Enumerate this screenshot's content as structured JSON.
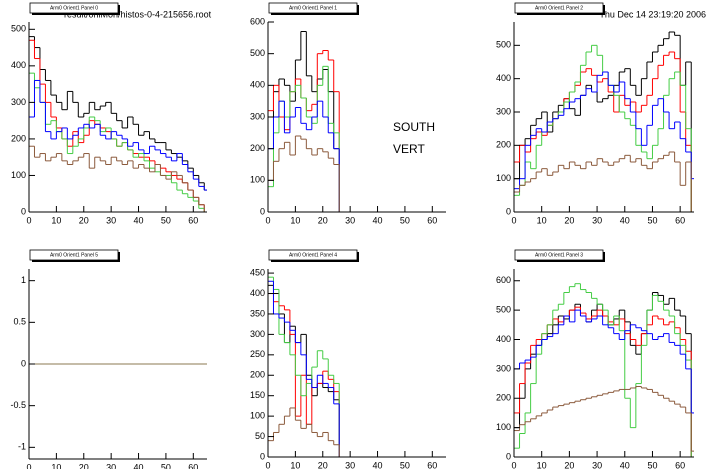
{
  "header": {
    "file": "result/onlMon/histos-0-4-215656.root",
    "date": "Thu Dec 14 23:19:20 2006",
    "labels": [
      "SOUTH",
      "VERT"
    ]
  },
  "chart_data": [
    {
      "type": "histogram",
      "title": "Arm0 Orient1 Panel 0",
      "xlim": [
        0,
        65
      ],
      "ylim": [
        0,
        520
      ],
      "xticks": [
        0,
        10,
        20,
        30,
        40,
        50,
        60
      ],
      "yticks": [
        0,
        100,
        200,
        300,
        400,
        500
      ],
      "bins": [
        0,
        2,
        4,
        6,
        8,
        10,
        12,
        14,
        16,
        18,
        20,
        22,
        24,
        26,
        28,
        30,
        32,
        34,
        36,
        38,
        40,
        42,
        44,
        46,
        48,
        50,
        52,
        54,
        56,
        58,
        60,
        62,
        64,
        65
      ],
      "series": [
        {
          "color": "#000000",
          "values": [
            480,
            450,
            390,
            360,
            320,
            300,
            280,
            330,
            300,
            260,
            270,
            300,
            280,
            290,
            300,
            270,
            250,
            230,
            260,
            240,
            210,
            220,
            200,
            190,
            190,
            170,
            160,
            150,
            140,
            120,
            100,
            80,
            60
          ]
        },
        {
          "color": "#ff0000",
          "values": [
            470,
            420,
            350,
            300,
            260,
            230,
            200,
            180,
            220,
            190,
            210,
            250,
            240,
            230,
            220,
            200,
            180,
            190,
            170,
            160,
            150,
            150,
            140,
            130,
            120,
            110,
            100,
            90,
            80,
            60,
            40,
            20,
            0
          ]
        },
        {
          "color": "#44cc44",
          "values": [
            380,
            340,
            300,
            240,
            250,
            220,
            200,
            160,
            180,
            200,
            230,
            260,
            250,
            220,
            230,
            200,
            180,
            190,
            170,
            150,
            160,
            140,
            120,
            110,
            100,
            100,
            80,
            60,
            50,
            40,
            30,
            10,
            0
          ]
        },
        {
          "color": "#0000ff",
          "values": [
            260,
            360,
            300,
            220,
            200,
            220,
            230,
            200,
            210,
            230,
            240,
            230,
            240,
            210,
            200,
            220,
            210,
            200,
            180,
            190,
            170,
            160,
            180,
            170,
            160,
            150,
            140,
            160,
            130,
            110,
            90,
            70,
            60
          ]
        },
        {
          "color": "#8b5a3c",
          "values": [
            180,
            150,
            160,
            140,
            150,
            160,
            140,
            130,
            140,
            150,
            160,
            120,
            150,
            140,
            130,
            150,
            140,
            130,
            140,
            120,
            130,
            120,
            110,
            130,
            100,
            90,
            110,
            100,
            80,
            60,
            40,
            20,
            0
          ]
        }
      ]
    },
    {
      "type": "histogram",
      "title": "Arm0 Orient1 Panel 1",
      "xlim": [
        0,
        65
      ],
      "ylim": [
        0,
        600
      ],
      "xticks": [
        0,
        10,
        20,
        30,
        40,
        50,
        60
      ],
      "yticks": [
        0,
        100,
        200,
        300,
        400,
        500,
        600
      ],
      "bins": [
        0,
        2,
        4,
        6,
        8,
        10,
        12,
        14,
        16,
        18,
        20,
        22,
        24,
        26,
        27
      ],
      "series": [
        {
          "color": "#000000",
          "values": [
            300,
            380,
            420,
            400,
            350,
            480,
            570,
            430,
            380,
            420,
            450,
            380,
            200,
            0
          ]
        },
        {
          "color": "#ff0000",
          "values": [
            320,
            400,
            300,
            260,
            380,
            420,
            360,
            320,
            340,
            500,
            510,
            480,
            380,
            0
          ]
        },
        {
          "color": "#44cc44",
          "values": [
            80,
            250,
            350,
            300,
            380,
            400,
            360,
            300,
            280,
            400,
            460,
            280,
            250,
            0
          ]
        },
        {
          "color": "#0000ff",
          "values": [
            200,
            300,
            350,
            250,
            300,
            330,
            280,
            260,
            300,
            350,
            300,
            250,
            200,
            0
          ]
        },
        {
          "color": "#8b5a3c",
          "values": [
            100,
            160,
            200,
            220,
            180,
            240,
            230,
            200,
            180,
            200,
            190,
            170,
            150,
            0
          ]
        }
      ]
    },
    {
      "type": "histogram",
      "title": "Arm0 Orient1 Panel 2",
      "xlim": [
        0,
        65
      ],
      "ylim": [
        0,
        570
      ],
      "xticks": [
        0,
        10,
        20,
        30,
        40,
        50,
        60
      ],
      "yticks": [
        0,
        100,
        200,
        300,
        400,
        500
      ],
      "bins": [
        0,
        2,
        4,
        6,
        8,
        10,
        12,
        14,
        16,
        18,
        20,
        22,
        24,
        26,
        28,
        30,
        32,
        34,
        36,
        38,
        40,
        42,
        44,
        46,
        48,
        50,
        52,
        54,
        56,
        58,
        60,
        62,
        64,
        65
      ],
      "series": [
        {
          "color": "#000000",
          "values": [
            100,
            200,
            220,
            260,
            280,
            300,
            240,
            300,
            320,
            340,
            310,
            290,
            350,
            380,
            360,
            330,
            340,
            350,
            380,
            420,
            430,
            380,
            350,
            400,
            450,
            480,
            500,
            520,
            540,
            530,
            380,
            450,
            0
          ]
        },
        {
          "color": "#ff0000",
          "values": [
            150,
            200,
            180,
            220,
            240,
            230,
            260,
            280,
            300,
            340,
            360,
            380,
            420,
            430,
            410,
            390,
            400,
            360,
            300,
            350,
            320,
            330,
            300,
            320,
            350,
            400,
            440,
            470,
            480,
            460,
            300,
            200,
            0
          ]
        },
        {
          "color": "#44cc44",
          "values": [
            50,
            80,
            150,
            130,
            200,
            240,
            260,
            280,
            300,
            330,
            360,
            390,
            440,
            480,
            500,
            470,
            420,
            380,
            350,
            300,
            280,
            260,
            200,
            180,
            160,
            200,
            250,
            350,
            400,
            420,
            380,
            250,
            0
          ]
        },
        {
          "color": "#0000ff",
          "values": [
            70,
            100,
            200,
            230,
            250,
            240,
            270,
            280,
            290,
            310,
            330,
            340,
            350,
            370,
            360,
            410,
            420,
            380,
            360,
            390,
            340,
            300,
            250,
            200,
            260,
            320,
            340,
            300,
            250,
            270,
            220,
            180,
            100
          ]
        },
        {
          "color": "#8b5a3c",
          "values": [
            60,
            80,
            90,
            100,
            120,
            130,
            110,
            120,
            140,
            130,
            150,
            140,
            130,
            150,
            140,
            160,
            150,
            140,
            150,
            160,
            170,
            150,
            160,
            140,
            130,
            150,
            160,
            170,
            180,
            150,
            80,
            150,
            0
          ]
        }
      ]
    },
    {
      "type": "histogram",
      "title": "Arm0 Orient1 Panel 5",
      "xlim": [
        0,
        65
      ],
      "ylim": [
        -1.14,
        1.14
      ],
      "xticks": [
        0,
        10,
        20,
        30,
        40,
        50,
        60
      ],
      "yticks": [
        -1,
        -0.5,
        0,
        0.5,
        1
      ],
      "bins": [
        0,
        65
      ],
      "series": [
        {
          "color": "#8b7a50",
          "values": [
            0
          ]
        }
      ]
    },
    {
      "type": "histogram",
      "title": "Arm0 Orient1 Panel 4",
      "xlim": [
        0,
        65
      ],
      "ylim": [
        0,
        460
      ],
      "xticks": [
        0,
        10,
        20,
        30,
        40,
        50,
        60
      ],
      "yticks": [
        0,
        50,
        100,
        150,
        200,
        250,
        300,
        350,
        400,
        450
      ],
      "bins": [
        0,
        2,
        4,
        6,
        8,
        10,
        12,
        14,
        16,
        18,
        20,
        22,
        24,
        26,
        27
      ],
      "series": [
        {
          "color": "#000000",
          "values": [
            420,
            400,
            350,
            280,
            320,
            280,
            300,
            200,
            150,
            180,
            170,
            160,
            140,
            0
          ]
        },
        {
          "color": "#ff0000",
          "values": [
            400,
            380,
            370,
            360,
            300,
            100,
            200,
            80,
            170,
            180,
            210,
            190,
            160,
            0
          ]
        },
        {
          "color": "#44cc44",
          "values": [
            440,
            410,
            300,
            280,
            250,
            200,
            150,
            180,
            220,
            260,
            240,
            200,
            180,
            0
          ]
        },
        {
          "color": "#0000ff",
          "values": [
            430,
            350,
            340,
            330,
            310,
            280,
            250,
            190,
            170,
            200,
            180,
            170,
            130,
            0
          ]
        },
        {
          "color": "#8b5a3c",
          "values": [
            40,
            60,
            80,
            100,
            120,
            90,
            70,
            80,
            60,
            50,
            60,
            40,
            30,
            0
          ]
        }
      ]
    },
    {
      "type": "histogram",
      "title": "Arm0 Orient1 Panel 3",
      "xlim": [
        0,
        65
      ],
      "ylim": [
        0,
        640
      ],
      "xticks": [
        0,
        10,
        20,
        30,
        40,
        50,
        60
      ],
      "yticks": [
        0,
        100,
        200,
        300,
        400,
        500,
        600
      ],
      "bins": [
        0,
        2,
        4,
        6,
        8,
        10,
        12,
        14,
        16,
        18,
        20,
        22,
        24,
        26,
        28,
        30,
        32,
        34,
        36,
        38,
        40,
        42,
        44,
        46,
        48,
        50,
        52,
        54,
        56,
        58,
        60,
        62,
        64,
        65
      ],
      "series": [
        {
          "color": "#000000",
          "values": [
            100,
            200,
            300,
            350,
            380,
            400,
            420,
            450,
            480,
            470,
            500,
            520,
            480,
            460,
            500,
            520,
            480,
            450,
            470,
            500,
            460,
            380,
            350,
            420,
            500,
            560,
            550,
            520,
            540,
            500,
            480,
            420,
            0
          ]
        },
        {
          "color": "#ff0000",
          "values": [
            150,
            250,
            320,
            380,
            400,
            420,
            450,
            470,
            460,
            480,
            500,
            510,
            490,
            470,
            480,
            500,
            480,
            460,
            450,
            470,
            420,
            400,
            380,
            420,
            450,
            480,
            470,
            450,
            460,
            440,
            400,
            360,
            0
          ]
        },
        {
          "color": "#44cc44",
          "values": [
            30,
            80,
            150,
            250,
            350,
            420,
            450,
            500,
            520,
            560,
            580,
            590,
            570,
            560,
            540,
            520,
            500,
            450,
            480,
            430,
            200,
            100,
            250,
            380,
            500,
            550,
            530,
            500,
            480,
            420,
            380,
            330,
            0
          ]
        },
        {
          "color": "#0000ff",
          "values": [
            300,
            320,
            330,
            340,
            380,
            400,
            410,
            420,
            450,
            480,
            460,
            500,
            480,
            460,
            470,
            480,
            450,
            440,
            420,
            400,
            430,
            450,
            440,
            430,
            420,
            400,
            410,
            420,
            390,
            380,
            350,
            300,
            150
          ]
        },
        {
          "color": "#8b5a3c",
          "values": [
            90,
            110,
            120,
            130,
            140,
            150,
            160,
            170,
            175,
            180,
            185,
            190,
            195,
            200,
            205,
            210,
            215,
            220,
            225,
            230,
            230,
            235,
            240,
            235,
            230,
            220,
            210,
            200,
            190,
            180,
            170,
            150,
            20
          ]
        }
      ]
    }
  ]
}
